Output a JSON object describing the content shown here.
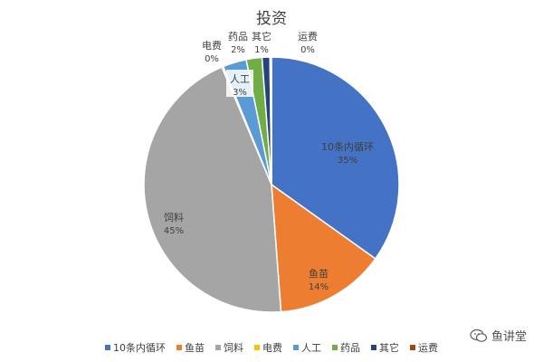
{
  "chart_data": {
    "type": "pie",
    "title": "投资",
    "categories": [
      "10条内循环",
      "鱼苗",
      "饲料",
      "电费",
      "人工",
      "药品",
      "其它",
      "运费"
    ],
    "values": [
      35,
      14,
      45,
      0,
      3,
      2,
      1,
      0
    ],
    "value_labels": [
      "35%",
      "14%",
      "45%",
      "0%",
      "3%",
      "2%",
      "1%",
      "0%"
    ],
    "colors": [
      "#4472C4",
      "#ED7D31",
      "#A5A5A5",
      "#FFC000",
      "#5B9BD5",
      "#70AD47",
      "#264478",
      "#9E480E"
    ],
    "legend_position": "bottom"
  },
  "watermark": {
    "text": "鱼讲堂"
  }
}
